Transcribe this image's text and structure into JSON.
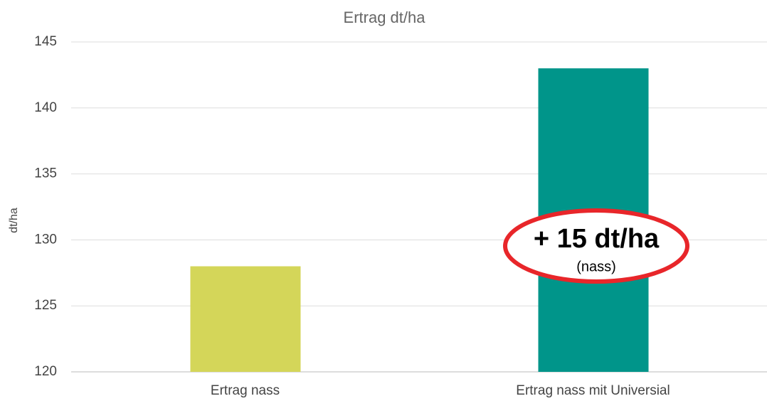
{
  "chart_data": {
    "type": "bar",
    "title": "Ertrag dt/ha",
    "y_label": "dt/ha",
    "categories": [
      "Ertrag nass",
      "Ertrag nass mit Universial"
    ],
    "values": [
      128,
      143
    ],
    "colors": [
      "#d4d659",
      "#00958a"
    ],
    "ylim": [
      120,
      145
    ],
    "yticks": [
      120,
      125,
      130,
      135,
      140,
      145
    ],
    "grid": true,
    "annotations": [
      "+ 15 dt/ha",
      "(nass)"
    ]
  }
}
